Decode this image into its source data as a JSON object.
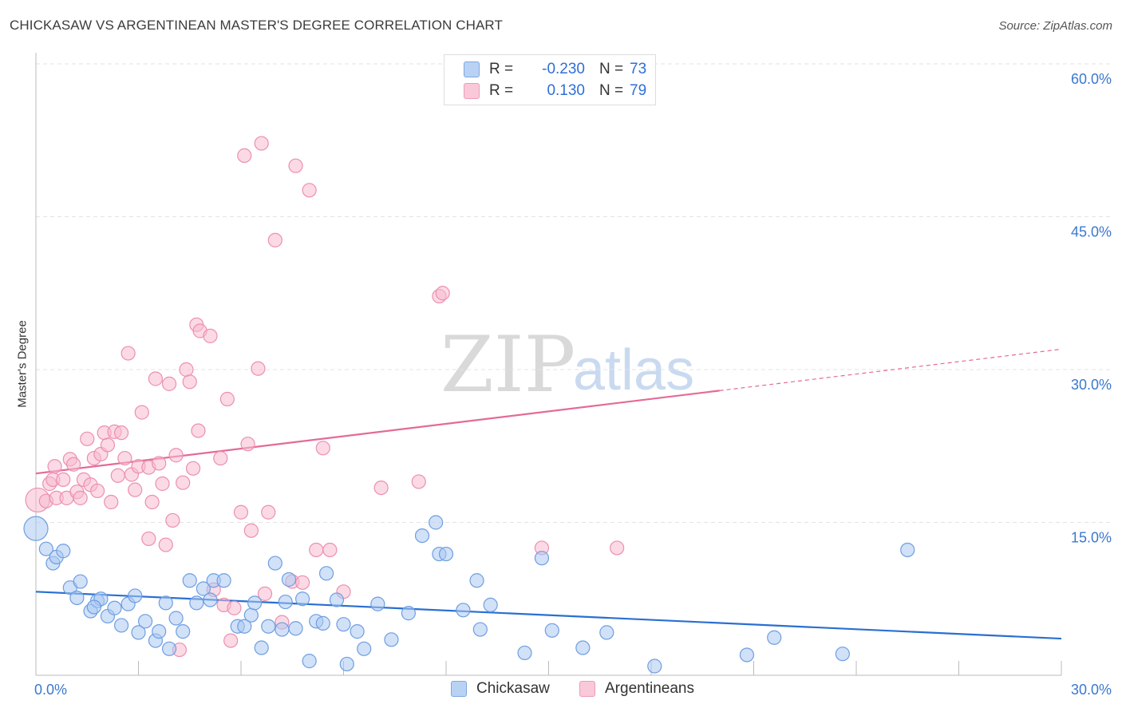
{
  "title": "CHICKASAW VS ARGENTINEAN MASTER'S DEGREE CORRELATION CHART",
  "source": "Source: ZipAtlas.com",
  "watermark": {
    "zip": "ZIP",
    "atlas": "atlas"
  },
  "legend": {
    "rows": [
      {
        "r_label": "R =",
        "r_value": "-0.230",
        "n_label": "N =",
        "n_value": "73"
      },
      {
        "r_label": "R =",
        "r_value": "0.130",
        "n_label": "N =",
        "n_value": "79"
      }
    ]
  },
  "bottom_legend": {
    "series1": "Chickasaw",
    "series2": "Argentineans"
  },
  "colors": {
    "chickasaw_fill": "#a9c8f2",
    "chickasaw_stroke": "#6f9ee0",
    "chickasaw_line": "#2a6fd1",
    "argentinean_fill": "#f7bcd0",
    "argentinean_stroke": "#ec8fb0",
    "argentinean_line": "#e46a97",
    "tick_text": "#3a78d0",
    "grid": "#e3e3e3"
  },
  "chart_data": {
    "type": "scatter",
    "title": "CHICKASAW VS ARGENTINEAN MASTER'S DEGREE CORRELATION CHART",
    "xlabel": "",
    "ylabel": "Master's Degree",
    "xlim": [
      0,
      30
    ],
    "ylim": [
      0,
      60
    ],
    "x_tick_labels": [
      "0.0%",
      "30.0%"
    ],
    "y_ticks": [
      15,
      30,
      45,
      60
    ],
    "y_tick_labels": [
      "15.0%",
      "30.0%",
      "45.0%",
      "60.0%"
    ],
    "series": [
      {
        "name": "Chickasaw",
        "R": -0.23,
        "N": 73,
        "trend": {
          "x0": 0,
          "y0": 8.2,
          "x1": 30,
          "y1": 3.6,
          "solid_until": 30
        },
        "points": [
          [
            0.0,
            14.4
          ],
          [
            0.3,
            12.4
          ],
          [
            0.5,
            11.0
          ],
          [
            0.6,
            11.6
          ],
          [
            0.8,
            12.2
          ],
          [
            1.0,
            8.6
          ],
          [
            1.2,
            7.6
          ],
          [
            1.3,
            9.2
          ],
          [
            1.6,
            6.3
          ],
          [
            1.8,
            7.3
          ],
          [
            1.9,
            7.5
          ],
          [
            2.1,
            5.8
          ],
          [
            2.3,
            6.6
          ],
          [
            2.5,
            4.9
          ],
          [
            2.7,
            7.0
          ],
          [
            2.9,
            7.8
          ],
          [
            3.0,
            4.2
          ],
          [
            3.2,
            5.3
          ],
          [
            3.5,
            3.4
          ],
          [
            3.6,
            4.3
          ],
          [
            3.8,
            7.1
          ],
          [
            3.9,
            2.6
          ],
          [
            4.1,
            5.6
          ],
          [
            4.3,
            4.3
          ],
          [
            4.5,
            9.3
          ],
          [
            4.7,
            7.1
          ],
          [
            4.9,
            8.5
          ],
          [
            5.1,
            7.4
          ],
          [
            5.2,
            9.3
          ],
          [
            5.5,
            9.3
          ],
          [
            5.9,
            4.8
          ],
          [
            6.1,
            4.8
          ],
          [
            6.3,
            5.9
          ],
          [
            6.4,
            7.1
          ],
          [
            6.6,
            2.7
          ],
          [
            6.8,
            4.8
          ],
          [
            7.0,
            11.0
          ],
          [
            7.2,
            4.5
          ],
          [
            7.4,
            9.4
          ],
          [
            7.6,
            4.6
          ],
          [
            7.8,
            7.5
          ],
          [
            8.0,
            1.4
          ],
          [
            8.2,
            5.3
          ],
          [
            8.4,
            5.1
          ],
          [
            8.5,
            10.0
          ],
          [
            8.8,
            7.4
          ],
          [
            9.0,
            5.0
          ],
          [
            9.1,
            1.1
          ],
          [
            9.4,
            4.3
          ],
          [
            9.6,
            2.6
          ],
          [
            10.0,
            7.0
          ],
          [
            10.4,
            3.5
          ],
          [
            10.9,
            6.1
          ],
          [
            11.3,
            13.7
          ],
          [
            11.7,
            15.0
          ],
          [
            11.8,
            11.9
          ],
          [
            12.0,
            11.9
          ],
          [
            12.5,
            6.4
          ],
          [
            12.9,
            9.3
          ],
          [
            13.0,
            4.5
          ],
          [
            13.3,
            6.9
          ],
          [
            14.3,
            2.2
          ],
          [
            14.8,
            11.5
          ],
          [
            15.1,
            4.4
          ],
          [
            16.0,
            2.7
          ],
          [
            16.7,
            4.2
          ],
          [
            18.1,
            0.9
          ],
          [
            20.8,
            2.0
          ],
          [
            21.6,
            3.7
          ],
          [
            23.6,
            2.1
          ],
          [
            25.5,
            12.3
          ],
          [
            1.7,
            6.7
          ],
          [
            7.3,
            7.2
          ]
        ]
      },
      {
        "name": "Argentineans",
        "R": 0.13,
        "N": 79,
        "trend": {
          "x0": 0,
          "y0": 19.8,
          "x1": 30,
          "y1": 32.0,
          "solid_until": 20
        },
        "points": [
          [
            0.05,
            17.2
          ],
          [
            0.3,
            17.1
          ],
          [
            0.4,
            18.8
          ],
          [
            0.5,
            19.2
          ],
          [
            0.55,
            20.5
          ],
          [
            0.6,
            17.4
          ],
          [
            0.8,
            19.2
          ],
          [
            0.9,
            17.4
          ],
          [
            1.0,
            21.2
          ],
          [
            1.1,
            20.7
          ],
          [
            1.2,
            18.0
          ],
          [
            1.3,
            17.4
          ],
          [
            1.4,
            19.2
          ],
          [
            1.5,
            23.2
          ],
          [
            1.6,
            18.7
          ],
          [
            1.7,
            21.3
          ],
          [
            1.8,
            18.1
          ],
          [
            1.9,
            21.7
          ],
          [
            2.0,
            23.8
          ],
          [
            2.1,
            22.6
          ],
          [
            2.2,
            17.0
          ],
          [
            2.3,
            23.9
          ],
          [
            2.4,
            19.6
          ],
          [
            2.5,
            23.8
          ],
          [
            2.6,
            21.3
          ],
          [
            2.7,
            31.6
          ],
          [
            2.8,
            19.7
          ],
          [
            2.9,
            18.2
          ],
          [
            3.0,
            20.5
          ],
          [
            3.1,
            25.8
          ],
          [
            3.3,
            13.4
          ],
          [
            3.3,
            20.4
          ],
          [
            3.4,
            17.0
          ],
          [
            3.5,
            29.1
          ],
          [
            3.6,
            20.8
          ],
          [
            3.7,
            18.8
          ],
          [
            3.8,
            12.8
          ],
          [
            3.9,
            28.6
          ],
          [
            4.0,
            15.2
          ],
          [
            4.1,
            21.6
          ],
          [
            4.2,
            2.5
          ],
          [
            4.3,
            18.9
          ],
          [
            4.4,
            30.0
          ],
          [
            4.5,
            28.8
          ],
          [
            4.6,
            20.3
          ],
          [
            4.7,
            34.4
          ],
          [
            4.75,
            24.0
          ],
          [
            4.8,
            33.8
          ],
          [
            5.1,
            33.3
          ],
          [
            5.2,
            8.4
          ],
          [
            5.4,
            21.3
          ],
          [
            5.5,
            6.9
          ],
          [
            5.6,
            27.1
          ],
          [
            5.7,
            3.4
          ],
          [
            5.8,
            6.6
          ],
          [
            6.0,
            16.0
          ],
          [
            6.1,
            51.0
          ],
          [
            6.2,
            22.7
          ],
          [
            6.3,
            14.2
          ],
          [
            6.5,
            30.1
          ],
          [
            6.6,
            52.2
          ],
          [
            6.7,
            8.0
          ],
          [
            6.8,
            16.0
          ],
          [
            7.0,
            42.7
          ],
          [
            7.2,
            5.2
          ],
          [
            7.5,
            9.2
          ],
          [
            7.6,
            50.0
          ],
          [
            7.8,
            9.1
          ],
          [
            8.0,
            47.6
          ],
          [
            8.2,
            12.3
          ],
          [
            8.4,
            22.3
          ],
          [
            8.6,
            12.3
          ],
          [
            9.0,
            8.2
          ],
          [
            10.1,
            18.4
          ],
          [
            11.2,
            19.0
          ],
          [
            11.8,
            37.2
          ],
          [
            11.9,
            37.5
          ],
          [
            14.8,
            12.5
          ],
          [
            17.0,
            12.5
          ]
        ]
      }
    ]
  }
}
